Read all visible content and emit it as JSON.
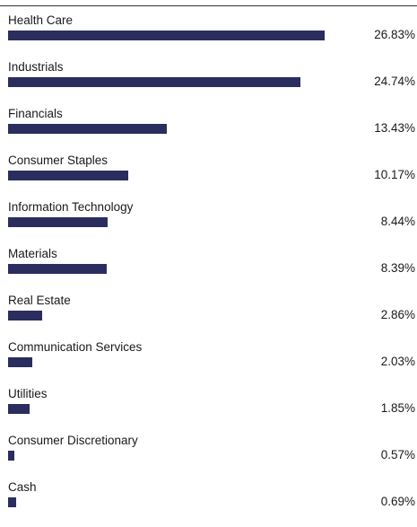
{
  "chart_data": {
    "type": "bar",
    "orientation": "horizontal",
    "title": "",
    "xlabel": "",
    "ylabel": "",
    "unit": "%",
    "xlim": [
      0,
      26.83
    ],
    "grid": false,
    "legend": "none",
    "bar_color": "#2b2d5e",
    "categories": [
      "Health Care",
      "Industrials",
      "Financials",
      "Consumer Staples",
      "Information Technology",
      "Materials",
      "Real Estate",
      "Communication Services",
      "Utilities",
      "Consumer Discretionary",
      "Cash"
    ],
    "values": [
      26.83,
      24.74,
      13.43,
      10.17,
      8.44,
      8.39,
      2.86,
      2.03,
      1.85,
      0.57,
      0.69
    ],
    "value_labels": [
      "26.83%",
      "24.74%",
      "13.43%",
      "10.17%",
      "8.44%",
      "8.39%",
      "2.86%",
      "2.03%",
      "1.85%",
      "0.57%",
      "0.69%"
    ]
  }
}
